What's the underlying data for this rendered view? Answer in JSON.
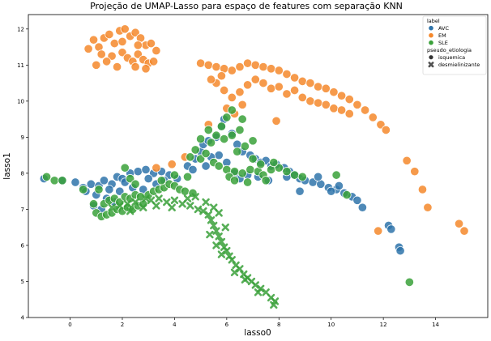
{
  "chart_data": {
    "type": "scatter",
    "title": "Projeção de UMAP-Lasso para espaço de features com separação KNN",
    "xlabel": "lasso0",
    "ylabel": "lasso1",
    "xlim": [
      -1.6,
      16.0
    ],
    "ylim": [
      4.0,
      12.4
    ],
    "xticks": [
      0,
      2,
      4,
      6,
      8,
      10,
      12,
      14
    ],
    "yticks": [
      4,
      5,
      6,
      7,
      8,
      9,
      10,
      11,
      12
    ],
    "legend": {
      "placement": "top-right",
      "hue_title": "label",
      "style_title": "pseudo_etiologia",
      "hue_items": [
        {
          "label": "AVC",
          "color": "#2f74aa"
        },
        {
          "label": "EM",
          "color": "#f5882b"
        },
        {
          "label": "SLE",
          "color": "#3aa13a"
        }
      ],
      "style_items": [
        {
          "label": "isquemica",
          "marker": "circle"
        },
        {
          "label": "desmielinizante",
          "marker": "x"
        }
      ]
    },
    "series": [
      {
        "name": "AVC",
        "marker": "circle",
        "color": "#2f74aa",
        "points": [
          [
            -1.0,
            7.85
          ],
          [
            -0.3,
            7.8
          ],
          [
            0.2,
            7.75
          ],
          [
            0.5,
            7.6
          ],
          [
            0.8,
            7.7
          ],
          [
            1.1,
            7.65
          ],
          [
            1.3,
            7.8
          ],
          [
            1.6,
            7.7
          ],
          [
            1.8,
            7.9
          ],
          [
            2.0,
            7.85
          ],
          [
            2.3,
            8.0
          ],
          [
            2.6,
            8.05
          ],
          [
            2.9,
            8.1
          ],
          [
            3.2,
            8.0
          ],
          [
            3.5,
            8.05
          ],
          [
            3.8,
            7.95
          ],
          [
            4.1,
            7.85
          ],
          [
            1.0,
            7.4
          ],
          [
            1.4,
            7.3
          ],
          [
            1.9,
            7.5
          ],
          [
            2.4,
            7.6
          ],
          [
            2.8,
            7.55
          ],
          [
            3.3,
            7.7
          ],
          [
            0.9,
            7.1
          ],
          [
            1.2,
            7.0
          ],
          [
            1.7,
            7.2
          ],
          [
            4.5,
            8.2
          ],
          [
            4.8,
            8.4
          ],
          [
            5.0,
            8.6
          ],
          [
            5.1,
            8.8
          ],
          [
            5.3,
            8.9
          ],
          [
            5.6,
            9.0
          ],
          [
            5.8,
            9.3
          ],
          [
            5.9,
            9.5
          ],
          [
            6.2,
            9.1
          ],
          [
            6.4,
            8.8
          ],
          [
            6.6,
            8.6
          ],
          [
            6.9,
            8.5
          ],
          [
            7.1,
            8.4
          ],
          [
            7.3,
            8.3
          ],
          [
            7.5,
            8.35
          ],
          [
            7.7,
            8.2
          ],
          [
            7.9,
            8.25
          ],
          [
            8.2,
            8.15
          ],
          [
            8.4,
            8.05
          ],
          [
            8.6,
            7.95
          ],
          [
            8.8,
            7.85
          ],
          [
            9.0,
            7.8
          ],
          [
            9.3,
            7.75
          ],
          [
            9.6,
            7.7
          ],
          [
            9.9,
            7.6
          ],
          [
            10.2,
            7.55
          ],
          [
            10.5,
            7.45
          ],
          [
            10.8,
            7.35
          ],
          [
            11.0,
            7.25
          ],
          [
            11.2,
            7.05
          ],
          [
            8.8,
            7.5
          ],
          [
            7.6,
            7.8
          ],
          [
            7.2,
            7.9
          ],
          [
            6.8,
            7.95
          ],
          [
            6.5,
            7.85
          ],
          [
            6.3,
            8.0
          ],
          [
            6.0,
            8.3
          ],
          [
            5.7,
            8.5
          ],
          [
            5.4,
            8.45
          ],
          [
            12.2,
            6.55
          ],
          [
            12.3,
            6.45
          ],
          [
            12.6,
            5.95
          ],
          [
            12.65,
            5.85
          ],
          [
            8.3,
            7.9
          ],
          [
            9.5,
            7.9
          ],
          [
            10.0,
            7.5
          ],
          [
            10.3,
            7.65
          ],
          [
            4.7,
            8.1
          ],
          [
            5.2,
            8.2
          ],
          [
            3.0,
            7.85
          ],
          [
            2.1,
            7.75
          ],
          [
            1.5,
            7.55
          ],
          [
            0.6,
            7.5
          ],
          [
            3.6,
            7.8
          ]
        ]
      },
      {
        "name": "EM",
        "marker": "circle",
        "color": "#f5882b",
        "points": [
          [
            0.7,
            11.45
          ],
          [
            0.9,
            11.7
          ],
          [
            1.1,
            11.5
          ],
          [
            1.3,
            11.75
          ],
          [
            1.5,
            11.85
          ],
          [
            1.7,
            11.6
          ],
          [
            1.9,
            11.95
          ],
          [
            2.1,
            12.0
          ],
          [
            2.3,
            11.8
          ],
          [
            2.5,
            11.9
          ],
          [
            2.7,
            11.75
          ],
          [
            2.9,
            11.55
          ],
          [
            3.1,
            11.6
          ],
          [
            3.3,
            11.4
          ],
          [
            2.0,
            11.35
          ],
          [
            2.2,
            11.2
          ],
          [
            2.4,
            11.1
          ],
          [
            2.6,
            11.3
          ],
          [
            2.8,
            11.15
          ],
          [
            3.0,
            11.05
          ],
          [
            1.6,
            11.25
          ],
          [
            1.4,
            11.1
          ],
          [
            1.0,
            11.0
          ],
          [
            1.8,
            10.95
          ],
          [
            2.5,
            10.95
          ],
          [
            2.9,
            10.9
          ],
          [
            1.2,
            11.3
          ],
          [
            2.0,
            11.65
          ],
          [
            2.6,
            11.55
          ],
          [
            3.2,
            11.1
          ],
          [
            5.0,
            11.05
          ],
          [
            5.3,
            11.0
          ],
          [
            5.6,
            10.95
          ],
          [
            5.9,
            10.9
          ],
          [
            6.2,
            10.85
          ],
          [
            6.5,
            10.95
          ],
          [
            6.8,
            11.05
          ],
          [
            7.1,
            11.0
          ],
          [
            7.4,
            10.95
          ],
          [
            7.7,
            10.9
          ],
          [
            8.0,
            10.85
          ],
          [
            8.3,
            10.75
          ],
          [
            8.6,
            10.65
          ],
          [
            8.9,
            10.55
          ],
          [
            9.2,
            10.5
          ],
          [
            9.5,
            10.4
          ],
          [
            9.8,
            10.35
          ],
          [
            10.1,
            10.25
          ],
          [
            10.4,
            10.15
          ],
          [
            10.7,
            10.05
          ],
          [
            11.0,
            9.9
          ],
          [
            11.3,
            9.75
          ],
          [
            11.6,
            9.55
          ],
          [
            11.9,
            9.35
          ],
          [
            12.1,
            9.2
          ],
          [
            5.6,
            10.5
          ],
          [
            5.9,
            10.3
          ],
          [
            6.2,
            10.1
          ],
          [
            6.5,
            10.25
          ],
          [
            6.8,
            10.45
          ],
          [
            7.1,
            10.6
          ],
          [
            7.4,
            10.5
          ],
          [
            7.7,
            10.35
          ],
          [
            8.0,
            10.4
          ],
          [
            8.3,
            10.2
          ],
          [
            8.6,
            10.3
          ],
          [
            8.9,
            10.1
          ],
          [
            9.2,
            10.0
          ],
          [
            9.5,
            9.95
          ],
          [
            9.8,
            9.9
          ],
          [
            10.1,
            9.8
          ],
          [
            10.4,
            9.75
          ],
          [
            10.7,
            9.65
          ],
          [
            6.0,
            9.8
          ],
          [
            6.3,
            9.65
          ],
          [
            6.6,
            9.9
          ],
          [
            5.4,
            10.6
          ],
          [
            5.8,
            10.7
          ],
          [
            7.9,
            9.45
          ],
          [
            12.9,
            8.35
          ],
          [
            13.2,
            8.05
          ],
          [
            13.5,
            7.55
          ],
          [
            13.7,
            7.05
          ],
          [
            11.8,
            6.4
          ],
          [
            14.9,
            6.6
          ],
          [
            15.1,
            6.4
          ],
          [
            3.3,
            8.15
          ],
          [
            3.9,
            8.25
          ],
          [
            4.4,
            8.45
          ],
          [
            5.3,
            9.35
          ]
        ]
      },
      {
        "name": "SLE",
        "marker": "circle",
        "color": "#3aa13a",
        "points": [
          [
            -0.9,
            7.9
          ],
          [
            -0.6,
            7.8
          ],
          [
            -0.3,
            7.8
          ],
          [
            0.5,
            7.55
          ],
          [
            0.9,
            7.15
          ],
          [
            1.0,
            6.9
          ],
          [
            1.2,
            6.8
          ],
          [
            1.4,
            6.85
          ],
          [
            1.6,
            6.9
          ],
          [
            1.8,
            7.0
          ],
          [
            2.0,
            6.95
          ],
          [
            2.2,
            7.05
          ],
          [
            2.4,
            7.0
          ],
          [
            2.6,
            7.1
          ],
          [
            2.8,
            7.15
          ],
          [
            1.3,
            7.15
          ],
          [
            1.5,
            7.25
          ],
          [
            1.7,
            7.3
          ],
          [
            1.9,
            7.2
          ],
          [
            2.1,
            7.35
          ],
          [
            2.3,
            7.3
          ],
          [
            2.5,
            7.4
          ],
          [
            2.7,
            7.35
          ],
          [
            3.0,
            7.4
          ],
          [
            3.2,
            7.5
          ],
          [
            3.4,
            7.55
          ],
          [
            3.6,
            7.6
          ],
          [
            3.8,
            7.7
          ],
          [
            4.0,
            7.65
          ],
          [
            4.2,
            7.55
          ],
          [
            4.4,
            7.5
          ],
          [
            4.7,
            7.45
          ],
          [
            2.1,
            8.15
          ],
          [
            2.3,
            7.85
          ],
          [
            2.5,
            7.7
          ],
          [
            1.1,
            7.55
          ],
          [
            4.6,
            8.45
          ],
          [
            4.8,
            8.65
          ],
          [
            5.0,
            8.4
          ],
          [
            5.2,
            8.55
          ],
          [
            5.4,
            8.85
          ],
          [
            5.6,
            9.05
          ],
          [
            5.8,
            9.3
          ],
          [
            6.0,
            9.55
          ],
          [
            6.2,
            9.75
          ],
          [
            5.5,
            8.3
          ],
          [
            5.7,
            8.2
          ],
          [
            6.0,
            8.1
          ],
          [
            6.3,
            8.05
          ],
          [
            6.1,
            7.9
          ],
          [
            6.6,
            8.0
          ],
          [
            6.9,
            8.1
          ],
          [
            7.2,
            8.05
          ],
          [
            7.4,
            7.95
          ],
          [
            7.7,
            8.1
          ],
          [
            8.0,
            8.15
          ],
          [
            8.3,
            8.05
          ],
          [
            8.6,
            7.95
          ],
          [
            8.9,
            7.9
          ],
          [
            6.4,
            8.6
          ],
          [
            6.7,
            8.75
          ],
          [
            7.0,
            8.4
          ],
          [
            7.3,
            8.25
          ],
          [
            6.5,
            9.2
          ],
          [
            6.2,
            9.05
          ],
          [
            5.9,
            8.95
          ],
          [
            6.3,
            7.8
          ],
          [
            6.8,
            7.75
          ],
          [
            7.5,
            7.8
          ],
          [
            10.2,
            7.95
          ],
          [
            10.6,
            7.4
          ],
          [
            13.0,
            4.98
          ],
          [
            4.5,
            7.9
          ],
          [
            4.0,
            7.95
          ],
          [
            3.5,
            7.8
          ],
          [
            5.0,
            8.95
          ],
          [
            5.3,
            9.2
          ],
          [
            6.6,
            9.5
          ],
          [
            7.0,
            8.9
          ],
          [
            7.8,
            8.3
          ]
        ]
      },
      {
        "name": "SLE",
        "marker": "x",
        "color": "#3aa13a",
        "points": [
          [
            1.6,
            7.05
          ],
          [
            1.9,
            7.1
          ],
          [
            2.2,
            7.15
          ],
          [
            2.5,
            7.2
          ],
          [
            2.8,
            7.05
          ],
          [
            3.1,
            7.25
          ],
          [
            3.4,
            7.3
          ],
          [
            3.7,
            7.2
          ],
          [
            4.0,
            7.25
          ],
          [
            4.3,
            7.15
          ],
          [
            4.6,
            7.1
          ],
          [
            4.9,
            7.0
          ],
          [
            5.1,
            6.95
          ],
          [
            5.3,
            6.85
          ],
          [
            5.4,
            6.7
          ],
          [
            5.5,
            6.55
          ],
          [
            5.6,
            6.4
          ],
          [
            5.7,
            6.25
          ],
          [
            5.8,
            6.1
          ],
          [
            5.9,
            5.95
          ],
          [
            6.0,
            5.85
          ],
          [
            6.1,
            5.7
          ],
          [
            6.2,
            5.6
          ],
          [
            6.35,
            5.45
          ],
          [
            6.5,
            5.35
          ],
          [
            6.65,
            5.2
          ],
          [
            6.8,
            5.1
          ],
          [
            6.95,
            5.0
          ],
          [
            7.1,
            4.9
          ],
          [
            7.3,
            4.8
          ],
          [
            7.5,
            4.7
          ],
          [
            7.7,
            4.55
          ],
          [
            7.85,
            4.45
          ],
          [
            7.8,
            4.35
          ],
          [
            5.5,
            7.05
          ],
          [
            5.7,
            6.9
          ],
          [
            5.35,
            6.3
          ],
          [
            5.6,
            6.0
          ],
          [
            5.8,
            5.75
          ],
          [
            6.3,
            5.25
          ],
          [
            6.7,
            5.05
          ],
          [
            7.2,
            4.7
          ],
          [
            4.5,
            7.3
          ],
          [
            3.9,
            7.05
          ],
          [
            3.3,
            7.1
          ],
          [
            2.9,
            7.3
          ],
          [
            2.3,
            6.95
          ],
          [
            5.2,
            7.2
          ],
          [
            4.8,
            7.35
          ],
          [
            5.95,
            6.5
          ]
        ]
      }
    ]
  }
}
